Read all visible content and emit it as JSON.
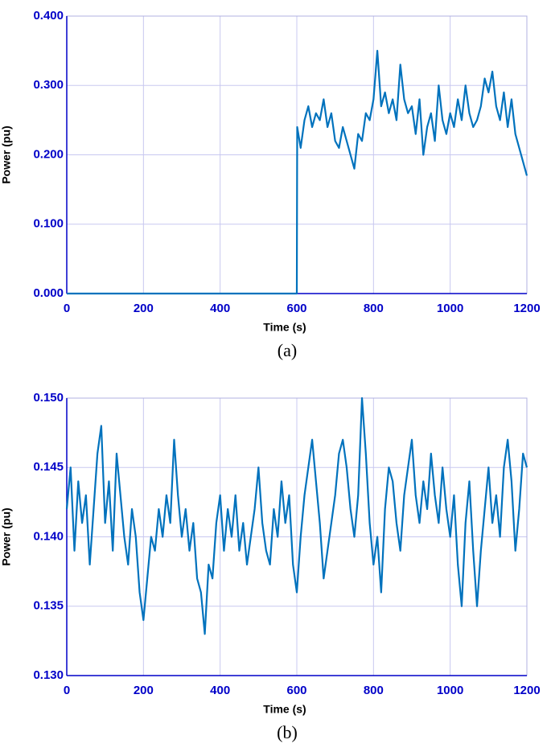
{
  "chart_data": [
    {
      "type": "line",
      "caption": "(a)",
      "xlabel": "Time (s)",
      "ylabel": "Power (pu)",
      "color": "#0072bd",
      "grid": true,
      "xlim": [
        0,
        1200
      ],
      "xticks": [
        0,
        200,
        400,
        600,
        800,
        1000,
        1200
      ],
      "ylim": [
        0,
        0.4
      ],
      "yticks": [
        {
          "value": 0,
          "label": "0.000"
        },
        {
          "value": 0.1,
          "label": "0.100"
        },
        {
          "value": 0.2,
          "label": "0.200"
        },
        {
          "value": 0.3,
          "label": "0.300"
        },
        {
          "value": 0.4,
          "label": "0.400"
        }
      ],
      "x": [
        0,
        600,
        601,
        610,
        620,
        630,
        640,
        650,
        660,
        670,
        680,
        690,
        700,
        710,
        720,
        730,
        740,
        750,
        760,
        770,
        780,
        790,
        800,
        810,
        820,
        830,
        840,
        850,
        860,
        870,
        880,
        890,
        900,
        910,
        920,
        930,
        940,
        950,
        960,
        970,
        980,
        990,
        1000,
        1010,
        1020,
        1030,
        1040,
        1050,
        1060,
        1070,
        1080,
        1090,
        1100,
        1110,
        1120,
        1130,
        1140,
        1150,
        1160,
        1170,
        1180,
        1190,
        1200
      ],
      "values": [
        0,
        0,
        0.24,
        0.21,
        0.25,
        0.27,
        0.24,
        0.26,
        0.25,
        0.28,
        0.24,
        0.26,
        0.22,
        0.21,
        0.24,
        0.22,
        0.2,
        0.18,
        0.23,
        0.22,
        0.26,
        0.25,
        0.28,
        0.35,
        0.27,
        0.29,
        0.26,
        0.28,
        0.25,
        0.33,
        0.28,
        0.26,
        0.27,
        0.23,
        0.28,
        0.2,
        0.24,
        0.26,
        0.22,
        0.3,
        0.25,
        0.23,
        0.26,
        0.24,
        0.28,
        0.25,
        0.3,
        0.26,
        0.24,
        0.25,
        0.27,
        0.31,
        0.29,
        0.32,
        0.27,
        0.25,
        0.29,
        0.24,
        0.28,
        0.23,
        0.21,
        0.19,
        0.17
      ]
    },
    {
      "type": "line",
      "caption": "(b)",
      "xlabel": "Time (s)",
      "ylabel": "Power (pu)",
      "color": "#0072bd",
      "grid": true,
      "xlim": [
        0,
        1200
      ],
      "xticks": [
        0,
        200,
        400,
        600,
        800,
        1000,
        1200
      ],
      "ylim": [
        0.13,
        0.15
      ],
      "yticks": [
        {
          "value": 0.13,
          "label": "0.130"
        },
        0.135,
        {
          "value": 0.14,
          "label": "0.140"
        },
        0.145,
        {
          "value": 0.15,
          "label": "0.150"
        }
      ],
      "x": [
        0,
        10,
        20,
        30,
        40,
        50,
        60,
        70,
        80,
        90,
        100,
        110,
        120,
        130,
        140,
        150,
        160,
        170,
        180,
        190,
        200,
        210,
        220,
        230,
        240,
        250,
        260,
        270,
        280,
        290,
        300,
        310,
        320,
        330,
        340,
        350,
        360,
        370,
        380,
        390,
        400,
        410,
        420,
        430,
        440,
        450,
        460,
        470,
        480,
        490,
        500,
        510,
        520,
        530,
        540,
        550,
        560,
        570,
        580,
        590,
        600,
        610,
        620,
        630,
        640,
        650,
        660,
        670,
        680,
        690,
        700,
        710,
        720,
        730,
        740,
        750,
        760,
        770,
        780,
        790,
        800,
        810,
        820,
        830,
        840,
        850,
        860,
        870,
        880,
        890,
        900,
        910,
        920,
        930,
        940,
        950,
        960,
        970,
        980,
        990,
        1000,
        1010,
        1020,
        1030,
        1040,
        1050,
        1060,
        1070,
        1080,
        1090,
        1100,
        1110,
        1120,
        1130,
        1140,
        1150,
        1160,
        1170,
        1180,
        1190,
        1200
      ],
      "values": [
        0.142,
        0.145,
        0.139,
        0.144,
        0.141,
        0.143,
        0.138,
        0.142,
        0.146,
        0.148,
        0.141,
        0.144,
        0.139,
        0.146,
        0.143,
        0.14,
        0.138,
        0.142,
        0.14,
        0.136,
        0.134,
        0.137,
        0.14,
        0.139,
        0.142,
        0.14,
        0.143,
        0.141,
        0.147,
        0.143,
        0.14,
        0.142,
        0.139,
        0.141,
        0.137,
        0.136,
        0.133,
        0.138,
        0.137,
        0.141,
        0.143,
        0.139,
        0.142,
        0.14,
        0.143,
        0.139,
        0.141,
        0.138,
        0.14,
        0.142,
        0.145,
        0.141,
        0.139,
        0.138,
        0.142,
        0.14,
        0.144,
        0.141,
        0.143,
        0.138,
        0.136,
        0.14,
        0.143,
        0.145,
        0.147,
        0.144,
        0.141,
        0.137,
        0.139,
        0.141,
        0.143,
        0.146,
        0.147,
        0.145,
        0.142,
        0.14,
        0.143,
        0.15,
        0.146,
        0.141,
        0.138,
        0.14,
        0.136,
        0.142,
        0.145,
        0.144,
        0.141,
        0.139,
        0.143,
        0.145,
        0.147,
        0.143,
        0.141,
        0.144,
        0.142,
        0.146,
        0.143,
        0.141,
        0.145,
        0.142,
        0.14,
        0.143,
        0.138,
        0.135,
        0.141,
        0.144,
        0.139,
        0.135,
        0.139,
        0.142,
        0.145,
        0.141,
        0.143,
        0.14,
        0.145,
        0.147,
        0.144,
        0.139,
        0.142,
        0.146,
        0.145
      ]
    }
  ]
}
